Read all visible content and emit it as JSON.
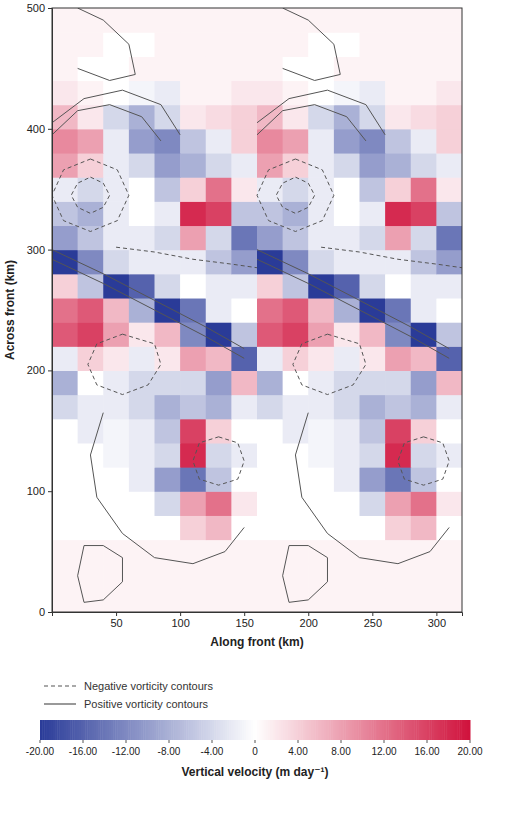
{
  "chart_data": {
    "type": "heatmap",
    "x_label": "Along front (km)",
    "y_label": "Across front (km)",
    "xlim": [
      0,
      320
    ],
    "xticks": [
      50,
      100,
      150,
      200,
      250,
      300
    ],
    "ylim": [
      0,
      500
    ],
    "yticks": [
      0,
      100,
      200,
      300,
      400,
      500
    ],
    "x": [
      10,
      30,
      50,
      70,
      90,
      110,
      130,
      150,
      170,
      190,
      210,
      230,
      250,
      270,
      290,
      310
    ],
    "y": [
      10,
      30,
      50,
      70,
      90,
      110,
      130,
      150,
      170,
      190,
      210,
      230,
      250,
      270,
      290,
      310,
      330,
      350,
      370,
      390,
      410,
      430,
      450,
      470,
      490
    ],
    "values": [
      [
        1,
        1,
        1,
        1,
        1,
        1,
        1,
        1,
        1,
        1,
        1,
        1,
        1,
        1,
        1,
        1
      ],
      [
        1,
        1,
        1,
        1,
        1,
        1,
        1,
        1,
        1,
        1,
        1,
        1,
        1,
        1,
        1,
        1
      ],
      [
        1,
        1,
        1,
        1,
        1,
        1,
        1,
        1,
        1,
        1,
        1,
        1,
        1,
        1,
        1,
        1
      ],
      [
        0,
        0,
        0,
        0,
        0,
        4,
        6,
        0,
        0,
        0,
        0,
        0,
        0,
        4,
        6,
        0
      ],
      [
        0,
        0,
        0,
        0,
        -4,
        8,
        12,
        2,
        0,
        0,
        0,
        0,
        -4,
        8,
        12,
        2
      ],
      [
        0,
        0,
        0,
        -2,
        -10,
        -14,
        -6,
        0,
        0,
        0,
        0,
        -2,
        -10,
        -14,
        -6,
        0
      ],
      [
        0,
        0,
        -1,
        -2,
        -4,
        18,
        -4,
        -2,
        0,
        0,
        -1,
        -2,
        -4,
        18,
        -4,
        -2
      ],
      [
        0,
        -2,
        -1,
        -2,
        -6,
        16,
        4,
        0,
        0,
        -2,
        -1,
        -2,
        -6,
        16,
        4,
        0
      ],
      [
        -4,
        -2,
        -2,
        -4,
        -8,
        -6,
        -8,
        -2,
        -4,
        -2,
        -2,
        -4,
        -8,
        -6,
        -8,
        -2
      ],
      [
        -8,
        0,
        -2,
        -4,
        -4,
        -4,
        -10,
        6,
        -8,
        0,
        -2,
        -4,
        -4,
        -4,
        -10,
        6
      ],
      [
        -2,
        4,
        2,
        -2,
        2,
        8,
        6,
        -16,
        -2,
        4,
        2,
        -2,
        2,
        8,
        6,
        -16
      ],
      [
        14,
        16,
        8,
        2,
        6,
        -12,
        -20,
        -6,
        14,
        16,
        8,
        2,
        6,
        -12,
        -20,
        -6
      ],
      [
        12,
        14,
        6,
        -8,
        -20,
        -14,
        -2,
        0,
        12,
        14,
        6,
        -8,
        -20,
        -14,
        -2,
        0
      ],
      [
        4,
        -6,
        -20,
        -16,
        -4,
        0,
        -2,
        -2,
        4,
        -6,
        -20,
        -16,
        -4,
        0,
        -2,
        -2
      ],
      [
        -20,
        -12,
        -4,
        -2,
        -2,
        -2,
        -6,
        -10,
        -20,
        -12,
        -4,
        -2,
        -2,
        -2,
        -6,
        -10
      ],
      [
        -10,
        -6,
        -2,
        -2,
        -4,
        8,
        -4,
        -14,
        -10,
        -6,
        -2,
        -2,
        -4,
        8,
        -4,
        -14
      ],
      [
        -6,
        -8,
        -2,
        0,
        -2,
        18,
        16,
        -6,
        -6,
        -8,
        -2,
        0,
        -2,
        18,
        16,
        -6
      ],
      [
        -2,
        -4,
        -2,
        0,
        -6,
        4,
        12,
        2,
        -2,
        -4,
        -2,
        0,
        -6,
        4,
        12,
        2
      ],
      [
        8,
        4,
        -2,
        -4,
        -10,
        -8,
        -4,
        -2,
        8,
        4,
        -2,
        -4,
        -10,
        -8,
        -4,
        -2
      ],
      [
        10,
        8,
        -2,
        -10,
        -12,
        -6,
        -2,
        4,
        10,
        8,
        -2,
        -10,
        -12,
        -6,
        -2,
        4
      ],
      [
        6,
        2,
        -4,
        -8,
        -4,
        2,
        3,
        4,
        6,
        2,
        -4,
        -8,
        -4,
        2,
        3,
        4
      ],
      [
        2,
        1,
        0,
        -1,
        -2,
        1,
        1,
        2,
        2,
        1,
        0,
        -1,
        -2,
        1,
        1,
        2
      ],
      [
        1,
        0,
        0,
        1,
        1,
        1,
        1,
        1,
        1,
        0,
        0,
        1,
        1,
        1,
        1,
        1
      ],
      [
        1,
        1,
        0,
        0,
        1,
        1,
        1,
        1,
        1,
        1,
        0,
        0,
        1,
        1,
        1,
        1
      ],
      [
        1,
        1,
        1,
        1,
        1,
        1,
        1,
        1,
        1,
        1,
        1,
        1,
        1,
        1,
        1,
        1
      ]
    ],
    "series": [
      {
        "name": "Negative vorticity contours",
        "line_style": "dashed",
        "color": "#555555",
        "lines": [
          {
            "x": [
              30,
              51,
              60,
              51,
              30,
              9,
              0,
              9,
              30
            ],
            "y": [
              375,
              366,
              345,
              324,
              315,
              324,
              345,
              366,
              375
            ]
          },
          {
            "x": [
              30,
              40,
              45,
              40,
              30,
              20,
              15,
              20,
              30
            ],
            "y": [
              360,
              355,
              345,
              335,
              330,
              335,
              345,
              355,
              360
            ]
          },
          {
            "x": [
              190,
              211,
              220,
              211,
              190,
              169,
              160,
              169,
              190
            ],
            "y": [
              375,
              366,
              345,
              324,
              315,
              324,
              345,
              366,
              375
            ]
          },
          {
            "x": [
              190,
              200,
              205,
              200,
              190,
              180,
              175,
              180,
              190
            ],
            "y": [
              360,
              355,
              345,
              335,
              330,
              335,
              345,
              355,
              360
            ]
          },
          {
            "x": [
              50,
              80,
              110,
              140,
              160
            ],
            "y": [
              302,
              298,
              292,
              288,
              285
            ]
          },
          {
            "x": [
              210,
              240,
              270,
              300,
              320
            ],
            "y": [
              302,
              298,
              292,
              288,
              285
            ]
          },
          {
            "x": [
              55,
              80,
              85,
              75,
              55,
              35,
              28,
              35,
              55
            ],
            "y": [
              230,
              222,
              205,
              188,
              180,
              188,
              205,
              222,
              230
            ]
          },
          {
            "x": [
              215,
              240,
              245,
              235,
              215,
              195,
              188,
              195,
              215
            ],
            "y": [
              230,
              222,
              205,
              188,
              180,
              188,
              205,
              222,
              230
            ]
          },
          {
            "x": [
              130,
              145,
              150,
              145,
              130,
              115,
              110,
              115,
              130
            ],
            "y": [
              145,
              140,
              125,
              110,
              105,
              110,
              125,
              140,
              145
            ]
          },
          {
            "x": [
              290,
              305,
              310,
              305,
              290,
              275,
              270,
              275,
              290
            ],
            "y": [
              145,
              140,
              125,
              110,
              105,
              110,
              125,
              140,
              145
            ]
          }
        ]
      },
      {
        "name": "Positive vorticity contours",
        "line_style": "solid",
        "color": "#555555",
        "lines": [
          {
            "x": [
              40,
              30,
              35,
              55,
              80,
              110,
              135,
              150
            ],
            "y": [
              165,
              130,
              95,
              65,
              45,
              40,
              50,
              70
            ]
          },
          {
            "x": [
              200,
              190,
              195,
              215,
              240,
              270,
              295,
              310
            ],
            "y": [
              165,
              130,
              95,
              65,
              45,
              40,
              50,
              70
            ]
          },
          {
            "x": [
              25,
              40,
              55,
              55,
              40,
              25,
              20,
              25
            ],
            "y": [
              55,
              55,
              45,
              25,
              10,
              8,
              30,
              55
            ]
          },
          {
            "x": [
              185,
              200,
              215,
              215,
              200,
              185,
              180,
              185
            ],
            "y": [
              55,
              55,
              45,
              25,
              10,
              8,
              30,
              55
            ]
          },
          {
            "x": [
              20,
              40,
              60,
              65,
              45,
              20
            ],
            "y": [
              500,
              490,
              470,
              445,
              440,
              450
            ]
          },
          {
            "x": [
              180,
              200,
              220,
              225,
              205,
              180
            ],
            "y": [
              500,
              490,
              470,
              445,
              440,
              450
            ]
          },
          {
            "x": [
              0,
              20,
              45,
              70,
              85
            ],
            "y": [
              395,
              415,
              420,
              410,
              390
            ]
          },
          {
            "x": [
              160,
              180,
              205,
              230,
              245
            ],
            "y": [
              395,
              415,
              420,
              410,
              390
            ]
          },
          {
            "x": [
              0,
              25,
              55,
              85,
              100
            ],
            "y": [
              405,
              425,
              432,
              420,
              395
            ]
          },
          {
            "x": [
              160,
              185,
              215,
              245,
              260
            ],
            "y": [
              405,
              425,
              432,
              420,
              395
            ]
          },
          {
            "x": [
              0,
              40,
              80,
              120,
              150
            ],
            "y": [
              300,
              280,
              258,
              236,
              218
            ]
          },
          {
            "x": [
              160,
              200,
              240,
              280,
              310
            ],
            "y": [
              300,
              280,
              258,
              236,
              218
            ]
          },
          {
            "x": [
              0,
              40,
              80,
              120,
              150
            ],
            "y": [
              292,
              272,
              250,
              228,
              210
            ]
          },
          {
            "x": [
              160,
              200,
              240,
              280,
              310
            ],
            "y": [
              292,
              272,
              250,
              228,
              210
            ]
          }
        ]
      }
    ],
    "legend": "bottom",
    "colorbar": {
      "label": "Vertical velocity (m day⁻¹)",
      "range": [
        -20,
        20
      ],
      "ticks": [
        {
          "value": -20,
          "label": "-20.00"
        },
        {
          "value": -16,
          "label": "-16.00"
        },
        {
          "value": -12,
          "label": "-12.00"
        },
        {
          "value": -8,
          "label": "-8.00"
        },
        {
          "value": -4,
          "label": "-4.00"
        },
        0,
        {
          "value": 4,
          "label": "4.00"
        },
        {
          "value": 8,
          "label": "8.00"
        },
        {
          "value": 12,
          "label": "12.00"
        },
        {
          "value": 16,
          "label": "16.00"
        },
        {
          "value": 20,
          "label": "20.00"
        }
      ]
    }
  }
}
